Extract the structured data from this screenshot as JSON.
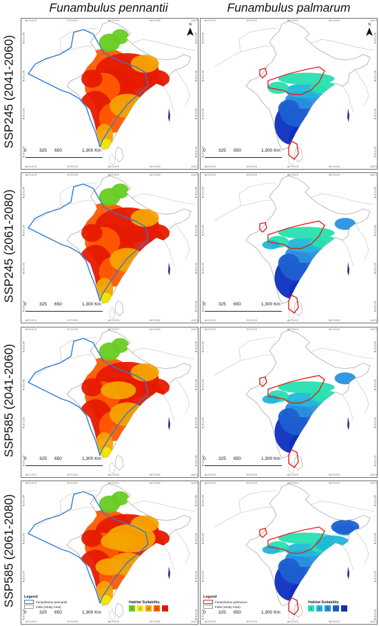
{
  "columns": [
    "Funambulus pennantii",
    "Funambulus palmarum"
  ],
  "rows": [
    "SSP245 (2041-2060)",
    "SSP245 (2061-2080)",
    "SSP585 (2041-2060)",
    "SSP585 (2061-2080)"
  ],
  "scalebar": {
    "labels": [
      "0",
      "325",
      "650",
      "1,300 Km"
    ]
  },
  "north_arrow": "N",
  "lon_ticks": [
    "60°0'0\"E",
    "70°0'0\"E",
    "80°0'0\"E",
    "90°0'0\"E",
    "100°0'0\"E"
  ],
  "lat_ticks": [
    "40°0'0\"N",
    "30°0'0\"N",
    "20°0'0\"N",
    "10°0'0\"N"
  ],
  "legend_left": {
    "title": "Legend",
    "items": [
      "Funambulus pennantii",
      "India (Study Area)"
    ],
    "outline_color": "#2a7ad6"
  },
  "legend_right": {
    "title": "Legend",
    "items": [
      "Funambulus palmarum",
      "India (Study Area)"
    ],
    "outline_color": "#e02020"
  },
  "habitat_left": {
    "title": "Habitat Suitability",
    "classes": [
      "1",
      "2",
      "3",
      "4",
      "5"
    ],
    "colors": [
      "#66cc22",
      "#f2e600",
      "#f5a300",
      "#ff5a00",
      "#e61a00"
    ]
  },
  "habitat_right": {
    "title": "Habitat Suitability",
    "classes": [
      "1",
      "2",
      "3",
      "4",
      "5"
    ],
    "colors": [
      "#27e0b0",
      "#1fb8d8",
      "#2a90e0",
      "#1d5fd0",
      "#0d2fc0"
    ]
  }
}
